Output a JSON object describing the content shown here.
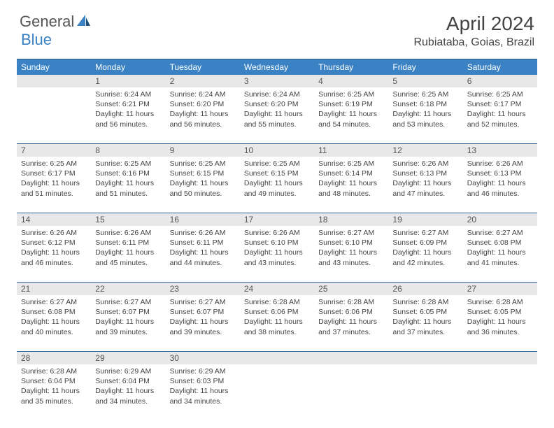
{
  "logo": {
    "part1": "General",
    "part2": "Blue"
  },
  "title": "April 2024",
  "location": "Rubiataba, Goias, Brazil",
  "colors": {
    "header_bg": "#3b82c4",
    "header_text": "#ffffff",
    "daynum_bg": "#e8e8e8",
    "border": "#2b5f8f",
    "text": "#444444",
    "logo_gray": "#555555",
    "logo_blue": "#3b82c4",
    "background": "#ffffff"
  },
  "weekdays": [
    "Sunday",
    "Monday",
    "Tuesday",
    "Wednesday",
    "Thursday",
    "Friday",
    "Saturday"
  ],
  "weeks": [
    {
      "numbers": [
        "",
        "1",
        "2",
        "3",
        "4",
        "5",
        "6"
      ],
      "cells": [
        {
          "sunrise": "",
          "sunset": "",
          "daylight": ""
        },
        {
          "sunrise": "Sunrise: 6:24 AM",
          "sunset": "Sunset: 6:21 PM",
          "daylight": "Daylight: 11 hours and 56 minutes."
        },
        {
          "sunrise": "Sunrise: 6:24 AM",
          "sunset": "Sunset: 6:20 PM",
          "daylight": "Daylight: 11 hours and 56 minutes."
        },
        {
          "sunrise": "Sunrise: 6:24 AM",
          "sunset": "Sunset: 6:20 PM",
          "daylight": "Daylight: 11 hours and 55 minutes."
        },
        {
          "sunrise": "Sunrise: 6:25 AM",
          "sunset": "Sunset: 6:19 PM",
          "daylight": "Daylight: 11 hours and 54 minutes."
        },
        {
          "sunrise": "Sunrise: 6:25 AM",
          "sunset": "Sunset: 6:18 PM",
          "daylight": "Daylight: 11 hours and 53 minutes."
        },
        {
          "sunrise": "Sunrise: 6:25 AM",
          "sunset": "Sunset: 6:17 PM",
          "daylight": "Daylight: 11 hours and 52 minutes."
        }
      ]
    },
    {
      "numbers": [
        "7",
        "8",
        "9",
        "10",
        "11",
        "12",
        "13"
      ],
      "cells": [
        {
          "sunrise": "Sunrise: 6:25 AM",
          "sunset": "Sunset: 6:17 PM",
          "daylight": "Daylight: 11 hours and 51 minutes."
        },
        {
          "sunrise": "Sunrise: 6:25 AM",
          "sunset": "Sunset: 6:16 PM",
          "daylight": "Daylight: 11 hours and 51 minutes."
        },
        {
          "sunrise": "Sunrise: 6:25 AM",
          "sunset": "Sunset: 6:15 PM",
          "daylight": "Daylight: 11 hours and 50 minutes."
        },
        {
          "sunrise": "Sunrise: 6:25 AM",
          "sunset": "Sunset: 6:15 PM",
          "daylight": "Daylight: 11 hours and 49 minutes."
        },
        {
          "sunrise": "Sunrise: 6:25 AM",
          "sunset": "Sunset: 6:14 PM",
          "daylight": "Daylight: 11 hours and 48 minutes."
        },
        {
          "sunrise": "Sunrise: 6:26 AM",
          "sunset": "Sunset: 6:13 PM",
          "daylight": "Daylight: 11 hours and 47 minutes."
        },
        {
          "sunrise": "Sunrise: 6:26 AM",
          "sunset": "Sunset: 6:13 PM",
          "daylight": "Daylight: 11 hours and 46 minutes."
        }
      ]
    },
    {
      "numbers": [
        "14",
        "15",
        "16",
        "17",
        "18",
        "19",
        "20"
      ],
      "cells": [
        {
          "sunrise": "Sunrise: 6:26 AM",
          "sunset": "Sunset: 6:12 PM",
          "daylight": "Daylight: 11 hours and 46 minutes."
        },
        {
          "sunrise": "Sunrise: 6:26 AM",
          "sunset": "Sunset: 6:11 PM",
          "daylight": "Daylight: 11 hours and 45 minutes."
        },
        {
          "sunrise": "Sunrise: 6:26 AM",
          "sunset": "Sunset: 6:11 PM",
          "daylight": "Daylight: 11 hours and 44 minutes."
        },
        {
          "sunrise": "Sunrise: 6:26 AM",
          "sunset": "Sunset: 6:10 PM",
          "daylight": "Daylight: 11 hours and 43 minutes."
        },
        {
          "sunrise": "Sunrise: 6:27 AM",
          "sunset": "Sunset: 6:10 PM",
          "daylight": "Daylight: 11 hours and 43 minutes."
        },
        {
          "sunrise": "Sunrise: 6:27 AM",
          "sunset": "Sunset: 6:09 PM",
          "daylight": "Daylight: 11 hours and 42 minutes."
        },
        {
          "sunrise": "Sunrise: 6:27 AM",
          "sunset": "Sunset: 6:08 PM",
          "daylight": "Daylight: 11 hours and 41 minutes."
        }
      ]
    },
    {
      "numbers": [
        "21",
        "22",
        "23",
        "24",
        "25",
        "26",
        "27"
      ],
      "cells": [
        {
          "sunrise": "Sunrise: 6:27 AM",
          "sunset": "Sunset: 6:08 PM",
          "daylight": "Daylight: 11 hours and 40 minutes."
        },
        {
          "sunrise": "Sunrise: 6:27 AM",
          "sunset": "Sunset: 6:07 PM",
          "daylight": "Daylight: 11 hours and 39 minutes."
        },
        {
          "sunrise": "Sunrise: 6:27 AM",
          "sunset": "Sunset: 6:07 PM",
          "daylight": "Daylight: 11 hours and 39 minutes."
        },
        {
          "sunrise": "Sunrise: 6:28 AM",
          "sunset": "Sunset: 6:06 PM",
          "daylight": "Daylight: 11 hours and 38 minutes."
        },
        {
          "sunrise": "Sunrise: 6:28 AM",
          "sunset": "Sunset: 6:06 PM",
          "daylight": "Daylight: 11 hours and 37 minutes."
        },
        {
          "sunrise": "Sunrise: 6:28 AM",
          "sunset": "Sunset: 6:05 PM",
          "daylight": "Daylight: 11 hours and 37 minutes."
        },
        {
          "sunrise": "Sunrise: 6:28 AM",
          "sunset": "Sunset: 6:05 PM",
          "daylight": "Daylight: 11 hours and 36 minutes."
        }
      ]
    },
    {
      "numbers": [
        "28",
        "29",
        "30",
        "",
        "",
        "",
        ""
      ],
      "cells": [
        {
          "sunrise": "Sunrise: 6:28 AM",
          "sunset": "Sunset: 6:04 PM",
          "daylight": "Daylight: 11 hours and 35 minutes."
        },
        {
          "sunrise": "Sunrise: 6:29 AM",
          "sunset": "Sunset: 6:04 PM",
          "daylight": "Daylight: 11 hours and 34 minutes."
        },
        {
          "sunrise": "Sunrise: 6:29 AM",
          "sunset": "Sunset: 6:03 PM",
          "daylight": "Daylight: 11 hours and 34 minutes."
        },
        {
          "sunrise": "",
          "sunset": "",
          "daylight": ""
        },
        {
          "sunrise": "",
          "sunset": "",
          "daylight": ""
        },
        {
          "sunrise": "",
          "sunset": "",
          "daylight": ""
        },
        {
          "sunrise": "",
          "sunset": "",
          "daylight": ""
        }
      ]
    }
  ]
}
